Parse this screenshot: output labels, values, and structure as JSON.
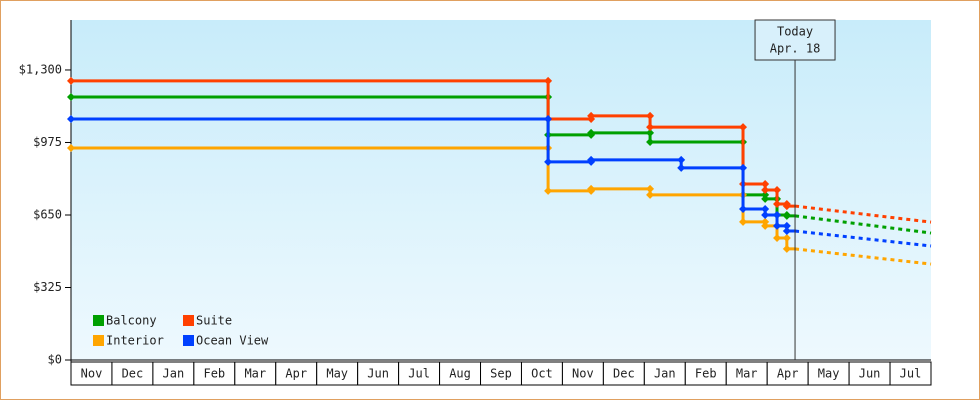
{
  "chart_data": {
    "type": "step-line",
    "xlim": [
      0,
      21
    ],
    "ylim": [
      0,
      1524
    ],
    "yticks": [
      {
        "value": 0,
        "label": "$0"
      },
      {
        "value": 325,
        "label": "$325"
      },
      {
        "value": 650,
        "label": "$650"
      },
      {
        "value": 975,
        "label": "$975"
      },
      {
        "value": 1300,
        "label": "$1,300"
      }
    ],
    "categories": [
      "Nov",
      "Dec",
      "Jan",
      "Feb",
      "Mar",
      "Apr",
      "May",
      "Jun",
      "Jul",
      "Aug",
      "Sep",
      "Oct",
      "Nov",
      "Dec",
      "Jan",
      "Feb",
      "Mar",
      "Apr",
      "May",
      "Jun",
      "Jul"
    ],
    "annotation": {
      "lines": [
        "Today",
        "Apr. 18"
      ],
      "x": 17.68
    },
    "series": [
      {
        "name": "Balcony",
        "color": "#00a000",
        "x": [
          0,
          11.65,
          12.7,
          14.14,
          16.41,
          16.95,
          17.24,
          17.48
        ],
        "values": [
          1179,
          1009,
          1018,
          977,
          740,
          722,
          650,
          646
        ],
        "forecast_x": [
          17.68,
          21
        ],
        "forecast_values": [
          646,
          569
        ]
      },
      {
        "name": "Suite",
        "color": "#ff4000",
        "x": [
          0,
          11.65,
          12.7,
          14.14,
          16.41,
          16.95,
          17.24,
          17.48
        ],
        "values": [
          1251,
          1080,
          1094,
          1044,
          789,
          762,
          699,
          690
        ],
        "forecast_x": [
          17.68,
          21
        ],
        "forecast_values": [
          690,
          618
        ]
      },
      {
        "name": "Interior",
        "color": "#ffa500",
        "x": [
          0,
          11.65,
          12.7,
          14.14,
          16.41,
          16.95,
          17.24,
          17.48
        ],
        "values": [
          950,
          758,
          767,
          740,
          619,
          601,
          547,
          498
        ],
        "forecast_x": [
          17.68,
          21
        ],
        "forecast_values": [
          498,
          430
        ]
      },
      {
        "name": "Ocean View",
        "color": "#0040ff",
        "x": [
          0,
          11.65,
          12.7,
          14.9,
          16.41,
          16.95,
          17.24,
          17.48
        ],
        "values": [
          1080,
          888,
          897,
          861,
          677,
          650,
          601,
          578
        ],
        "forecast_x": [
          17.68,
          21
        ],
        "forecast_values": [
          578,
          511
        ]
      }
    ]
  }
}
